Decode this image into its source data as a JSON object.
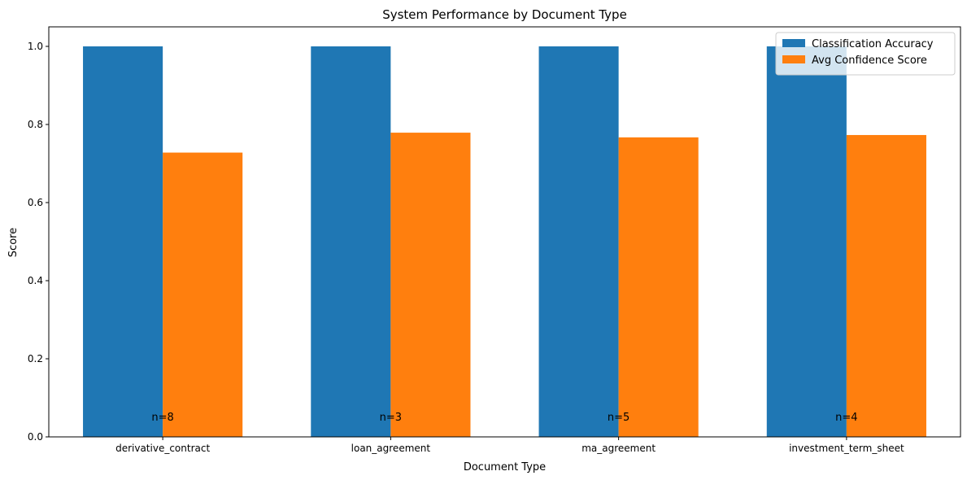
{
  "chart_data": {
    "type": "bar",
    "title": "System Performance by Document Type",
    "xlabel": "Document Type",
    "ylabel": "Score",
    "categories": [
      "derivative_contract",
      "loan_agreement",
      "ma_agreement",
      "investment_term_sheet"
    ],
    "series": [
      {
        "name": "Classification Accuracy",
        "color": "#1f77b4",
        "values": [
          1.0,
          1.0,
          1.0,
          1.0
        ]
      },
      {
        "name": "Avg Confidence Score",
        "color": "#ff7f0e",
        "values": [
          0.728,
          0.779,
          0.767,
          0.773
        ]
      }
    ],
    "annotations": [
      "n=8",
      "n=3",
      "n=5",
      "n=4"
    ],
    "annotation_y": 0.05,
    "ylim": [
      0,
      1.05
    ],
    "yticks": [
      0.0,
      0.2,
      0.4,
      0.6,
      0.8,
      1.0
    ],
    "ytick_labels": [
      "0.0",
      "0.2",
      "0.4",
      "0.6",
      "0.8",
      "1.0"
    ],
    "grid": false,
    "legend_position": "top-right"
  }
}
